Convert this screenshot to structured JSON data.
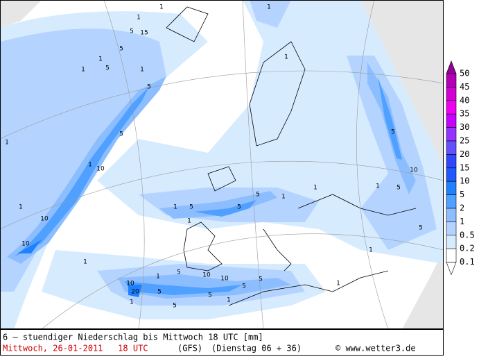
{
  "map": {
    "contour_labels": [
      "1",
      "1",
      "5",
      "15",
      "5",
      "1",
      "1",
      "5",
      "1",
      "5",
      "1",
      "10",
      "5",
      "1",
      "10",
      "10",
      "1",
      "1",
      "1",
      "5",
      "5",
      "5",
      "1",
      "1",
      "1",
      "10",
      "10",
      "5",
      "1",
      "5",
      "1",
      "20",
      "5",
      "1",
      "5",
      "10",
      "5",
      "1",
      "5",
      "1",
      "1",
      "5",
      "10",
      "5",
      "1",
      "5",
      "1"
    ]
  },
  "legend": {
    "labels": [
      50,
      45,
      40,
      35,
      30,
      25,
      20,
      15,
      10,
      5,
      2,
      1,
      0.5,
      0.2,
      0.1
    ],
    "colors": [
      "#960096",
      "#b400b4",
      "#d200d2",
      "#f000f0",
      "#c800ff",
      "#9632ff",
      "#6450ff",
      "#3246ff",
      "#1e5aff",
      "#1e82ff",
      "#50a0ff",
      "#8cbeff",
      "#b4d4ff",
      "#d7ebff",
      "#ffffff"
    ]
  },
  "footer": {
    "title": "6 – stuendiger Niederschlag bis Mittwoch 18 UTC [mm]",
    "date": "Mittwoch, 26-01-2011   18 UTC",
    "model": "(GFS)",
    "run": "(Dienstag 06 + 36)",
    "credit": "© www.wetter3.de"
  }
}
